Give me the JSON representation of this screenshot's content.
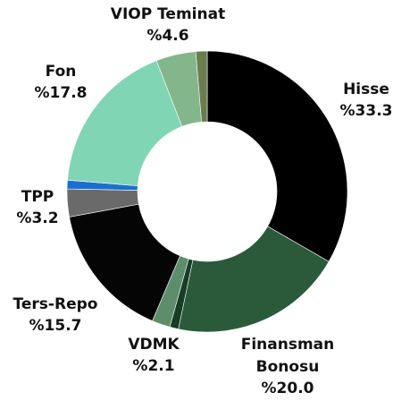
{
  "chart_data": {
    "type": "donut",
    "categories": [
      "Hisse",
      "Finansman Bonosu",
      null,
      "VDMK",
      "Ters-Repo",
      "TPP",
      null,
      "Fon",
      "VIOP Teminat",
      null
    ],
    "values": [
      33.3,
      20.0,
      1.0,
      2.1,
      15.7,
      3.2,
      1.0,
      17.8,
      4.6,
      1.3
    ],
    "value_labels": [
      "%33.3",
      "%20.0",
      null,
      "%2.1",
      "%15.7",
      "%3.2",
      null,
      "%17.8",
      "%4.6",
      null
    ],
    "colors": [
      "#000000",
      "#2b5a3b",
      "#173d26",
      "#5e8d6c",
      "#050505",
      "#6a6a6a",
      "#1a6fd0",
      "#80d5b5",
      "#84b68b",
      "#6b7d4f"
    ]
  }
}
